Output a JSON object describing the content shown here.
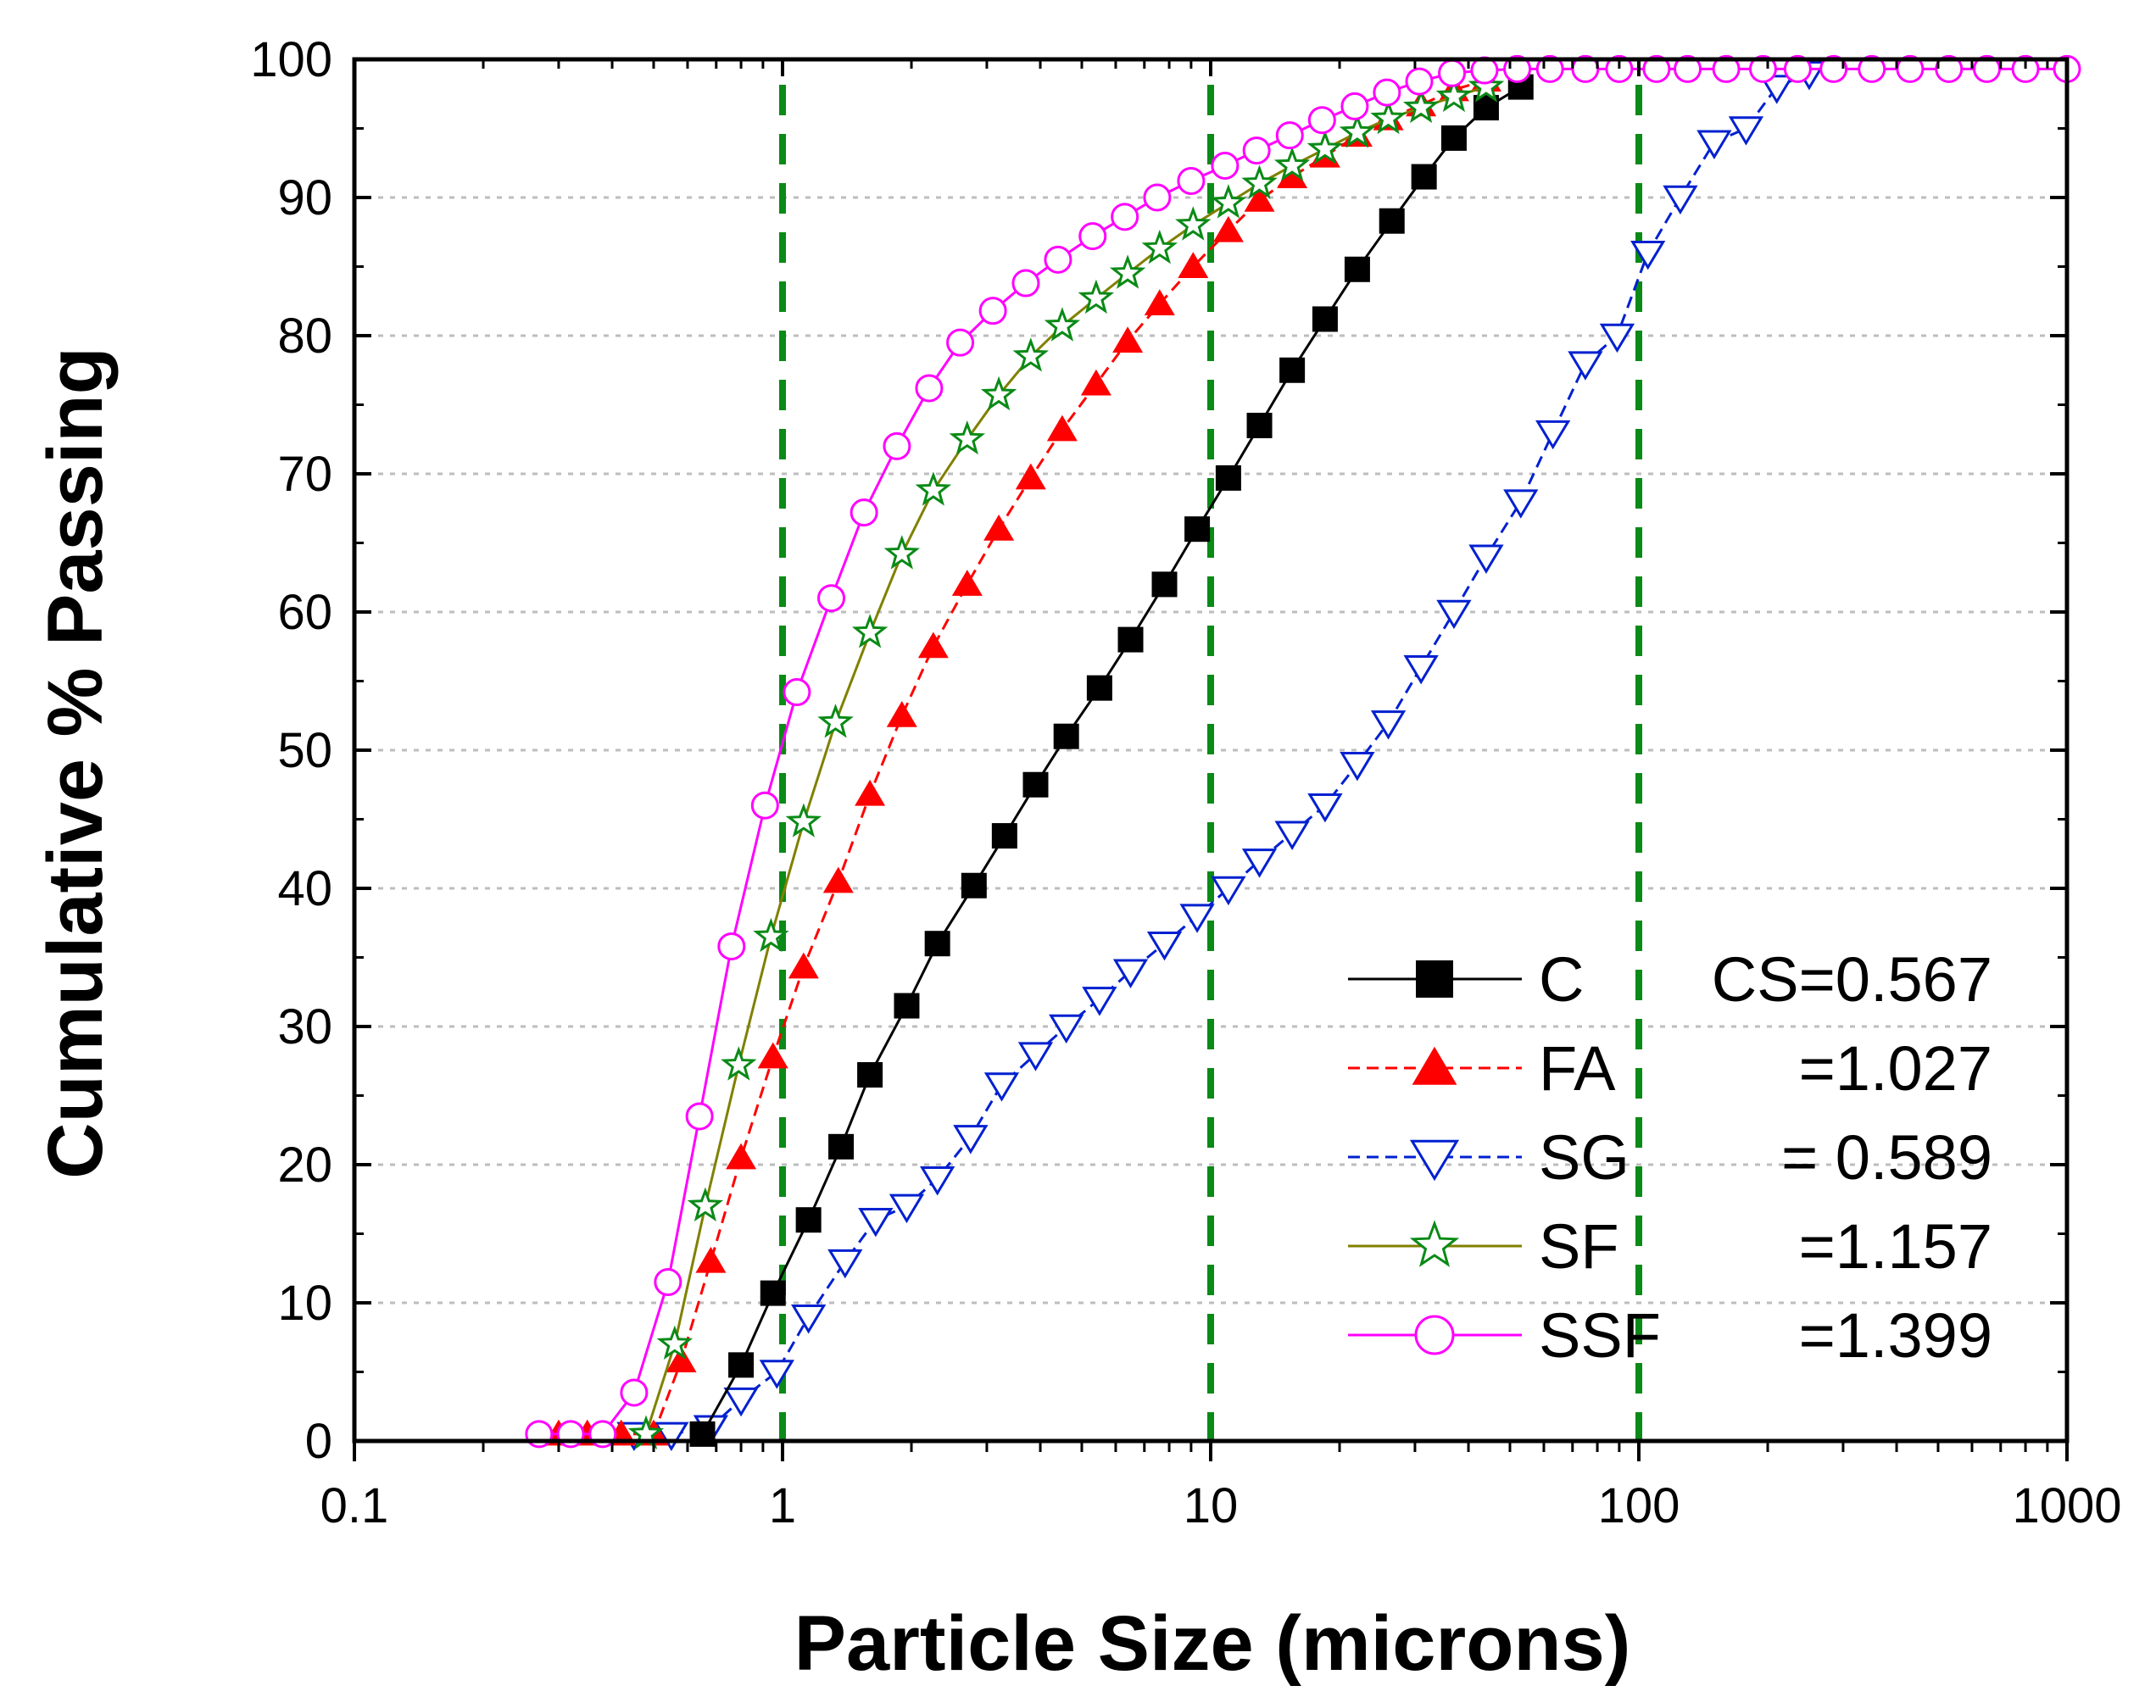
{
  "chart_data": {
    "type": "line",
    "xlabel": "Particle Size (microns)",
    "ylabel": "Cumulative % Passing",
    "x_scale": "log",
    "xlim": [
      0.1,
      1000
    ],
    "ylim": [
      0,
      100
    ],
    "x_ticks": [
      0.1,
      1,
      10,
      100,
      1000
    ],
    "x_tick_labels": [
      "0.1",
      "1",
      "10",
      "100",
      "1000"
    ],
    "y_ticks": [
      0,
      10,
      20,
      30,
      40,
      50,
      60,
      70,
      80,
      90,
      100
    ],
    "y_tick_labels": [
      "0",
      "10",
      "20",
      "30",
      "40",
      "50",
      "60",
      "70",
      "80",
      "90",
      "100"
    ],
    "horizontal_grid": true,
    "reference_lines_x": [
      1,
      10,
      100
    ],
    "legend_position": "bottom-right",
    "colors": {
      "reference_line": "#0a8a16",
      "grid": "#bdbdbd"
    },
    "series": [
      {
        "name": "C",
        "value_text": "CS=0.567",
        "color": "#000000",
        "marker": "filled-square",
        "dash": "solid",
        "x": [
          0.65,
          0.8,
          0.95,
          1.15,
          1.37,
          1.6,
          1.95,
          2.3,
          2.8,
          3.3,
          3.9,
          4.6,
          5.5,
          6.5,
          7.8,
          9.3,
          11,
          13,
          15.5,
          18.5,
          22,
          26.5,
          31.5,
          37,
          44,
          53
        ],
        "y": [
          0.5,
          5.5,
          10.7,
          16,
          21.3,
          26.5,
          31.5,
          36,
          40.2,
          43.8,
          47.5,
          51,
          54.5,
          58,
          62,
          66,
          69.7,
          73.5,
          77.5,
          81.2,
          84.8,
          88.3,
          91.5,
          94.3,
          96.5,
          98
        ]
      },
      {
        "name": "FA",
        "value_text": "=1.027",
        "color": "#ff0000",
        "marker": "filled-triangle",
        "dash": "dashed",
        "x": [
          0.3,
          0.35,
          0.42,
          0.5,
          0.58,
          0.68,
          0.8,
          0.95,
          1.12,
          1.35,
          1.6,
          1.9,
          2.25,
          2.7,
          3.2,
          3.8,
          4.5,
          5.4,
          6.4,
          7.6,
          9.1,
          11,
          13,
          15.5,
          18.5,
          22,
          26,
          31,
          37,
          44
        ],
        "y": [
          0.5,
          0.5,
          0.5,
          0.5,
          5.8,
          13,
          20.5,
          27.8,
          34.3,
          40.5,
          46.8,
          52.5,
          57.5,
          62,
          66,
          69.7,
          73.2,
          76.5,
          79.6,
          82.3,
          85,
          87.6,
          89.8,
          91.5,
          93,
          94.5,
          95.7,
          96.7,
          97.8,
          98.5
        ]
      },
      {
        "name": "SG",
        "value_text": "= 0.589",
        "color": "#0020d0",
        "marker": "open-down-triangle",
        "dash": "dashed",
        "x": [
          0.45,
          0.55,
          0.68,
          0.8,
          0.97,
          1.15,
          1.4,
          1.65,
          1.95,
          2.3,
          2.75,
          3.25,
          3.9,
          4.6,
          5.5,
          6.5,
          7.8,
          9.3,
          11,
          13,
          15.5,
          18.5,
          22,
          26,
          31,
          37,
          44,
          53,
          63,
          75,
          89,
          105,
          125,
          150,
          178,
          210,
          250
        ],
        "y": [
          0.5,
          0.5,
          1,
          3,
          5,
          9,
          13,
          16,
          17,
          19,
          22,
          25.8,
          28,
          30,
          32,
          34,
          36,
          38,
          40,
          42,
          44,
          46,
          49,
          52,
          56,
          60,
          64,
          68,
          73,
          78,
          80,
          86,
          90,
          94,
          95,
          98,
          99
        ]
      },
      {
        "name": "SF",
        "value_text": "=1.157",
        "color": "#808000",
        "marker_color": "#0a8a16",
        "marker": "open-star",
        "dash": "solid",
        "x": [
          0.48,
          0.56,
          0.66,
          0.79,
          0.94,
          1.12,
          1.33,
          1.6,
          1.9,
          2.25,
          2.7,
          3.2,
          3.8,
          4.5,
          5.4,
          6.4,
          7.6,
          9.1,
          11,
          13,
          15.5,
          18.5,
          22,
          26,
          31,
          37,
          44
        ],
        "y": [
          0.5,
          7,
          17,
          27.2,
          36.5,
          44.8,
          52,
          58.5,
          64.2,
          68.8,
          72.5,
          75.7,
          78.5,
          80.7,
          82.7,
          84.5,
          86.3,
          88,
          89.6,
          91,
          92.3,
          93.5,
          94.7,
          95.7,
          96.5,
          97.3,
          98
        ]
      },
      {
        "name": "SSF",
        "value_text": "=1.399",
        "color": "#ff00ff",
        "marker": "open-circle",
        "dash": "solid",
        "x": [
          0.27,
          0.32,
          0.38,
          0.45,
          0.54,
          0.64,
          0.76,
          0.91,
          1.08,
          1.3,
          1.55,
          1.85,
          2.2,
          2.6,
          3.1,
          3.7,
          4.4,
          5.3,
          6.3,
          7.5,
          9,
          10.8,
          12.8,
          15.3,
          18.2,
          21.7,
          25.8,
          30.7,
          36.6,
          43.6,
          52,
          62,
          75,
          90,
          110,
          130,
          160,
          195,
          235,
          285,
          350,
          430,
          530,
          650,
          800,
          1000
        ],
        "y": [
          0.5,
          0.5,
          0.5,
          3.5,
          11.5,
          23.5,
          35.8,
          46,
          54.2,
          61,
          67.2,
          72,
          76.2,
          79.5,
          81.8,
          83.8,
          85.5,
          87.2,
          88.6,
          90,
          91.2,
          92.3,
          93.4,
          94.5,
          95.6,
          96.6,
          97.6,
          98.4,
          99,
          99.2,
          99.3,
          99.3,
          99.3,
          99.3,
          99.3,
          99.3,
          99.3,
          99.3,
          99.3,
          99.3,
          99.3,
          99.3,
          99.3,
          99.3,
          99.3,
          99.3
        ]
      }
    ]
  }
}
